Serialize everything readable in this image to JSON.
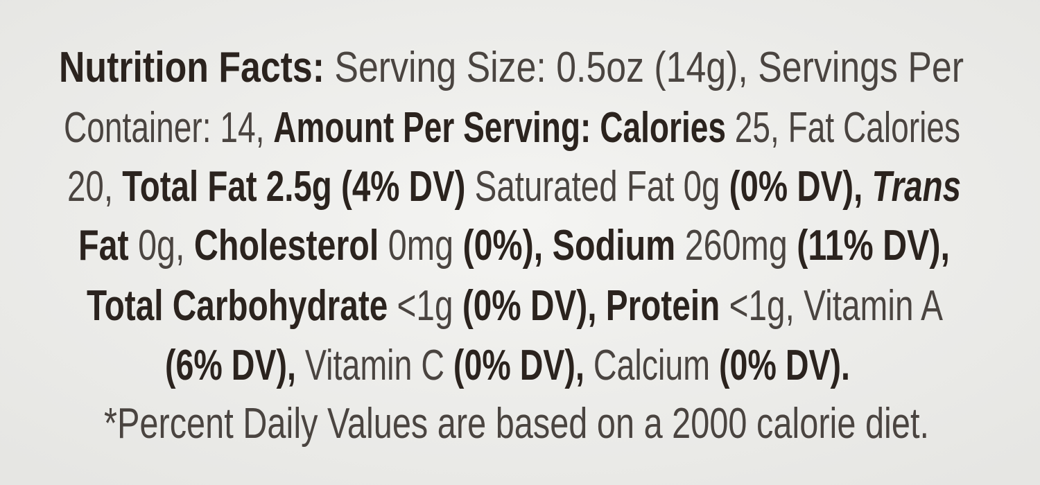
{
  "label": {
    "lines": [
      [
        {
          "text": "Nutrition Facts:",
          "style": "bold"
        },
        {
          "text": " Serving Size: 0.5oz (14g), Servings Per",
          "style": "light"
        }
      ],
      [
        {
          "text": "Container: 14, ",
          "style": "light"
        },
        {
          "text": "Amount Per Serving: Calories",
          "style": "bold"
        },
        {
          "text": " 25, Fat Calories",
          "style": "light"
        }
      ],
      [
        {
          "text": "20, ",
          "style": "light"
        },
        {
          "text": "Total Fat 2.5g (4% DV)",
          "style": "bold"
        },
        {
          "text": " Saturated Fat 0g ",
          "style": "light"
        },
        {
          "text": "(0% DV), ",
          "style": "bold"
        },
        {
          "text": "Trans",
          "style": "bold-italic"
        }
      ],
      [
        {
          "text": "Fat",
          "style": "bold"
        },
        {
          "text": " 0g, ",
          "style": "light"
        },
        {
          "text": "Cholesterol",
          "style": "bold"
        },
        {
          "text": " 0mg ",
          "style": "light"
        },
        {
          "text": "(0%), Sodium",
          "style": "bold"
        },
        {
          "text": " 260mg ",
          "style": "light"
        },
        {
          "text": "(11% DV),",
          "style": "bold"
        }
      ],
      [
        {
          "text": "Total Carbohydrate",
          "style": "bold"
        },
        {
          "text": " <1g ",
          "style": "light"
        },
        {
          "text": "(0% DV), Protein",
          "style": "bold"
        },
        {
          "text": " <1g, Vitamin A",
          "style": "light"
        }
      ],
      [
        {
          "text": "(6% DV),",
          "style": "bold"
        },
        {
          "text": " Vitamin C ",
          "style": "light"
        },
        {
          "text": "(0% DV),",
          "style": "bold"
        },
        {
          "text": " Calcium ",
          "style": "light"
        },
        {
          "text": "(0% DV).",
          "style": "bold"
        }
      ],
      [
        {
          "text": "*Percent Daily Values are based on a 2000 calorie diet.",
          "style": "light"
        }
      ]
    ]
  }
}
